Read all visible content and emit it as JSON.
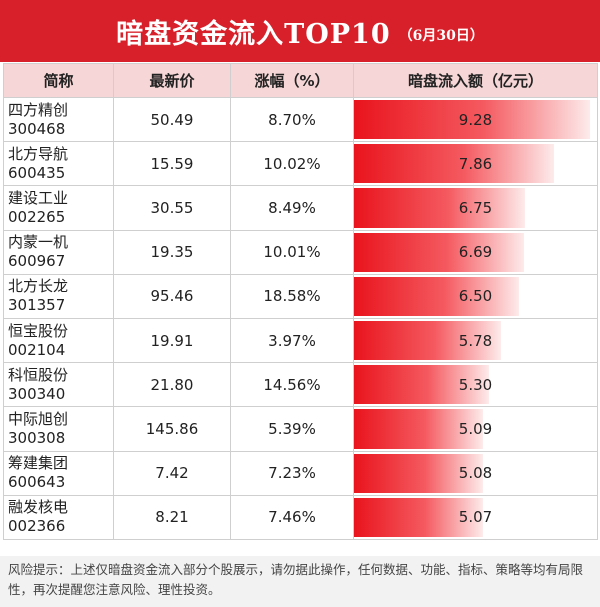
{
  "header": {
    "title": "暗盘资金流入TOP10",
    "date": "（6月30日）"
  },
  "table": {
    "columns": [
      "简称",
      "最新价",
      "涨幅（%）",
      "暗盘流入额（亿元）"
    ],
    "rows": [
      {
        "name": "四方精创",
        "code": "300468",
        "price": "50.49",
        "change": "8.70%",
        "inflow": "9.28"
      },
      {
        "name": "北方导航",
        "code": "600435",
        "price": "15.59",
        "change": "10.02%",
        "inflow": "7.86"
      },
      {
        "name": "建设工业",
        "code": "002265",
        "price": "30.55",
        "change": "8.49%",
        "inflow": "6.75"
      },
      {
        "name": "内蒙一机",
        "code": "600967",
        "price": "19.35",
        "change": "10.01%",
        "inflow": "6.69"
      },
      {
        "name": "北方长龙",
        "code": "301357",
        "price": "95.46",
        "change": "18.58%",
        "inflow": "6.50"
      },
      {
        "name": "恒宝股份",
        "code": "002104",
        "price": "19.91",
        "change": "3.97%",
        "inflow": "5.78"
      },
      {
        "name": "科恒股份",
        "code": "300340",
        "price": "21.80",
        "change": "14.56%",
        "inflow": "5.30"
      },
      {
        "name": "中际旭创",
        "code": "300308",
        "price": "145.86",
        "change": "5.39%",
        "inflow": "5.09"
      },
      {
        "name": "筹建集团",
        "code": "600643",
        "price": "7.42",
        "change": "7.23%",
        "inflow": "5.08"
      },
      {
        "name": "融发核电",
        "code": "002366",
        "price": "8.21",
        "change": "7.46%",
        "inflow": "5.07"
      }
    ]
  },
  "footer": {
    "disclaimer": "风险提示：上述仅暗盘资金流入部分个股展示，请勿据此操作，任何数据、功能、指标、策略等均有局限性，再次提醒您注意风险、理性投资。"
  },
  "colors": {
    "banner": "#d8202a",
    "header_row": "#f6d6d6",
    "bar": "#e9141d"
  }
}
